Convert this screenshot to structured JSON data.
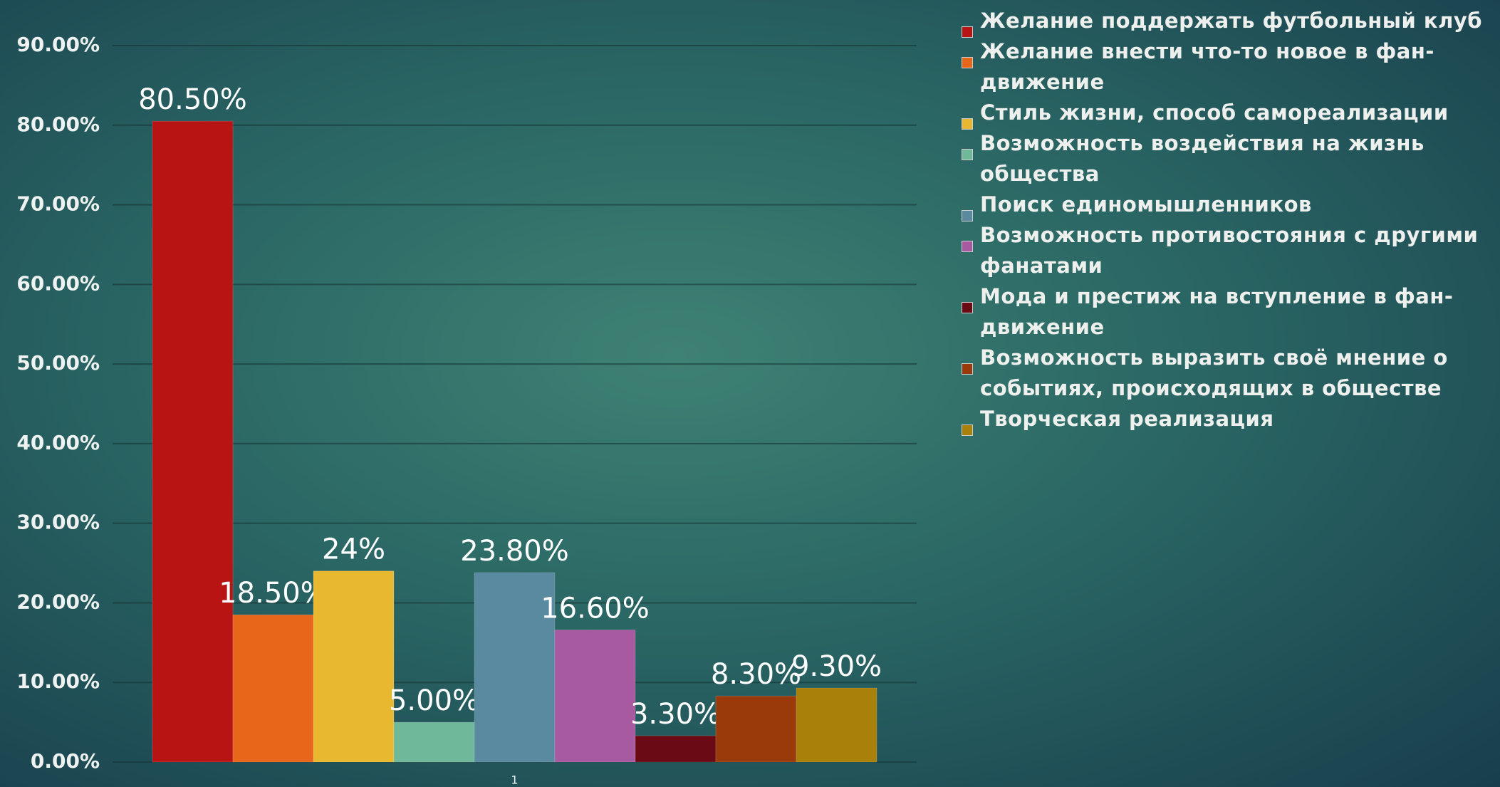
{
  "chart_data": {
    "type": "bar",
    "categories": [
      "1"
    ],
    "series": [
      {
        "name": "Желание поддержать футбольный клуб",
        "color": "#b81414",
        "values": [
          80.5
        ],
        "value_labels": [
          "80.50%"
        ]
      },
      {
        "name": "Желание внести что-то новое в фан-движение",
        "color": "#e8661a",
        "values": [
          18.5
        ],
        "value_labels": [
          "18.50%"
        ]
      },
      {
        "name": "Стиль жизни, способ самореализации",
        "color": "#e8b830",
        "values": [
          24
        ],
        "value_labels": [
          "24%"
        ]
      },
      {
        "name": "Возможность воздействия на жизнь общества",
        "color": "#6fb89a",
        "values": [
          5
        ],
        "value_labels": [
          "5.00%"
        ]
      },
      {
        "name": "Поиск единомышленников",
        "color": "#5a8aa0",
        "values": [
          23.8
        ],
        "value_labels": [
          "23.80%"
        ]
      },
      {
        "name": "Возможность противостояния с другими фанатами",
        "color": "#a85aa0",
        "values": [
          16.6
        ],
        "value_labels": [
          "16.60%"
        ]
      },
      {
        "name": "Мода и престиж на вступление в фан-движение",
        "color": "#6a0a14",
        "values": [
          3.3
        ],
        "value_labels": [
          "3.30%"
        ]
      },
      {
        "name": "Возможность выразить своё мнение о событиях, происходящих в обществе",
        "color": "#9a3a0a",
        "values": [
          8.3
        ],
        "value_labels": [
          "8.30%"
        ]
      },
      {
        "name": "Творческая реализация",
        "color": "#a8800a",
        "values": [
          9.3
        ],
        "value_labels": [
          "9.30%"
        ]
      }
    ],
    "ylim": [
      0,
      90
    ],
    "yticks": [
      {
        "value": 0,
        "label": "0.00%"
      },
      {
        "value": 10,
        "label": "10.00%"
      },
      {
        "value": 20,
        "label": "20.00%"
      },
      {
        "value": 30,
        "label": "30.00%"
      },
      {
        "value": 40,
        "label": "40.00%"
      },
      {
        "value": 50,
        "label": "50.00%"
      },
      {
        "value": 60,
        "label": "60.00%"
      },
      {
        "value": 70,
        "label": "70.00%"
      },
      {
        "value": 80,
        "label": "80.00%"
      },
      {
        "value": 90,
        "label": "90.00%"
      }
    ],
    "grid": true,
    "legend": "right"
  }
}
